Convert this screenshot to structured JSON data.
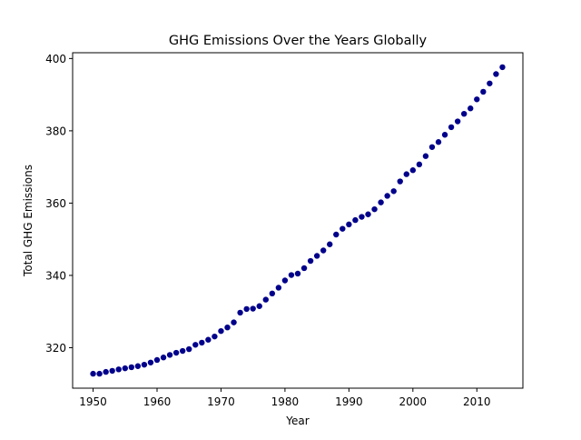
{
  "chart_data": {
    "type": "scatter",
    "title": "GHG Emissions Over the Years Globally",
    "xlabel": "Year",
    "ylabel": "Total GHG Emissions",
    "xlim": [
      1946.8,
      2017.2
    ],
    "ylim": [
      308.8,
      401.6
    ],
    "xticks": [
      1950,
      1960,
      1970,
      1980,
      1990,
      2000,
      2010
    ],
    "yticks": [
      320,
      340,
      360,
      380,
      400
    ],
    "grid": false,
    "legend": "none",
    "marker_color": "#00008b",
    "x": [
      1950,
      1951,
      1952,
      1953,
      1954,
      1955,
      1956,
      1957,
      1958,
      1959,
      1960,
      1961,
      1962,
      1963,
      1964,
      1965,
      1966,
      1967,
      1968,
      1969,
      1970,
      1971,
      1972,
      1973,
      1974,
      1975,
      1976,
      1977,
      1978,
      1979,
      1980,
      1981,
      1982,
      1983,
      1984,
      1985,
      1986,
      1987,
      1988,
      1989,
      1990,
      1991,
      1992,
      1993,
      1994,
      1995,
      1996,
      1997,
      1998,
      1999,
      2000,
      2001,
      2002,
      2003,
      2004,
      2005,
      2006,
      2007,
      2008,
      2009,
      2010,
      2011,
      2012,
      2013,
      2014
    ],
    "y": [
      312.8,
      312.8,
      313.3,
      313.6,
      314.0,
      314.3,
      314.6,
      314.9,
      315.3,
      315.9,
      316.6,
      317.3,
      318.0,
      318.6,
      319.1,
      319.6,
      320.8,
      321.4,
      322.2,
      323.1,
      324.6,
      325.6,
      327.0,
      329.7,
      330.7,
      330.8,
      331.5,
      333.3,
      335.0,
      336.6,
      338.6,
      340.1,
      340.5,
      342.0,
      344.0,
      345.4,
      346.9,
      348.6,
      351.3,
      352.9,
      354.1,
      355.3,
      356.2,
      356.9,
      358.3,
      360.2,
      362.0,
      363.3,
      366.0,
      368.0,
      369.1,
      370.7,
      373.0,
      375.5,
      376.9,
      378.9,
      381.0,
      382.6,
      384.7,
      386.2,
      388.7,
      390.8,
      393.1,
      395.7,
      397.6
    ]
  }
}
